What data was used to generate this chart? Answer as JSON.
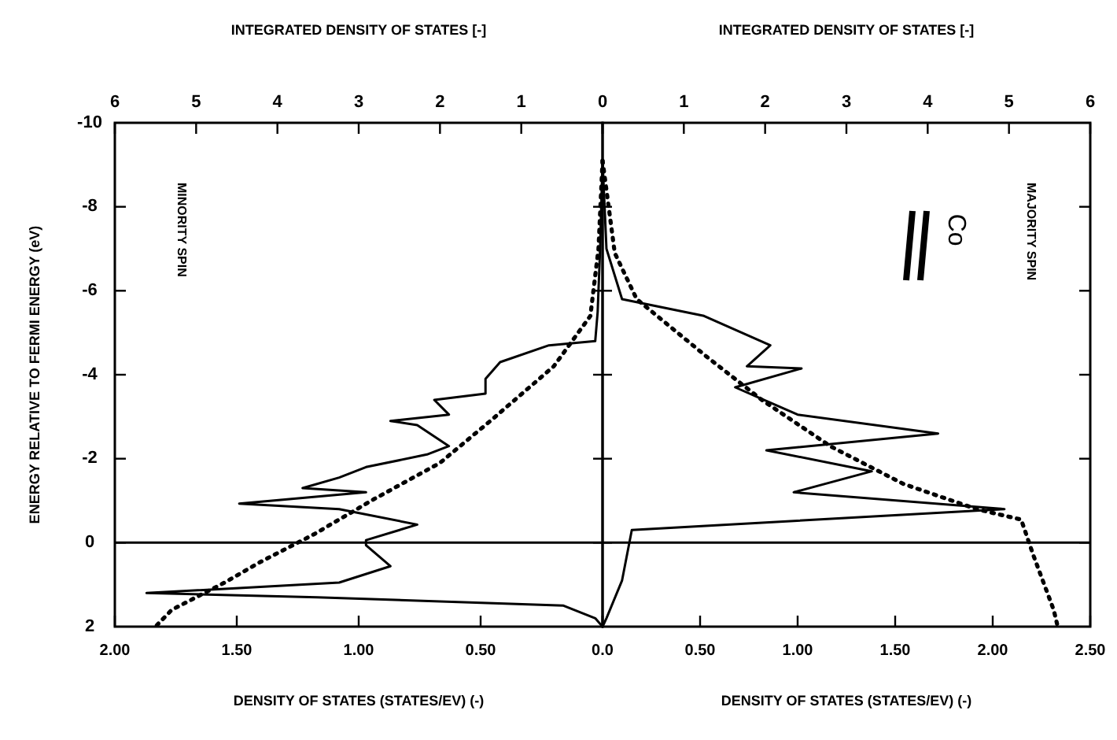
{
  "chart_data": [
    {
      "type": "line",
      "ylabel": "ENERGY RELATIVE TO FERMI ENERGY (eV)",
      "xlabel": "DENSITY OF STATES (STATES/EV) (-)",
      "x2label": "INTEGRATED DENSITY OF STATES [-]",
      "ylim": [
        2,
        -10
      ],
      "yticks": [
        -10,
        -8,
        -6,
        -4,
        -2,
        0,
        2
      ],
      "xlim": [
        2,
        0
      ],
      "xticks": [
        {
          "value": 2,
          "label": "2.00"
        },
        {
          "value": 1.5,
          "label": "1.50"
        },
        {
          "value": 1,
          "label": "1.00"
        },
        {
          "value": 0.5,
          "label": "0.50"
        },
        {
          "value": 0,
          "label": "0.0"
        }
      ],
      "x2lim": [
        6,
        0
      ],
      "x2ticks": [
        6,
        5,
        4,
        3,
        2,
        1,
        0
      ],
      "grid": false,
      "series": [
        {
          "color": "#000000",
          "line_style": "solid",
          "values": [
            -9.1,
            -7,
            -5.5,
            -4.8,
            -4.7,
            -4.3,
            -3.9,
            -3.55,
            -3.4,
            -3.05,
            -2.9,
            -2.8,
            -2.3,
            -2.1,
            -1.8,
            -1.55,
            -1.3,
            -1.2,
            -0.93,
            -0.8,
            -0.43,
            -0.06,
            0.06,
            0.56,
            0.95,
            1.2,
            1.3,
            1.5,
            1.8,
            2
          ],
          "x": [
            0,
            0.01,
            0.02,
            0.03,
            0.22,
            0.42,
            0.48,
            0.48,
            0.69,
            0.63,
            0.87,
            0.76,
            0.63,
            0.72,
            0.97,
            1.08,
            1.23,
            0.97,
            1.49,
            1.08,
            0.76,
            0.97,
            0.97,
            0.87,
            1.08,
            1.87,
            1.17,
            0.16,
            0.03,
            0
          ]
        },
        {
          "color": "#000000",
          "line_style": "dotted",
          "axis": "x2",
          "values": [
            -9.1,
            -7,
            -5.4,
            -4.2,
            -2.9,
            -1.9,
            -1.05,
            -0.2,
            0.45,
            0.95,
            1.6,
            2
          ],
          "x": [
            0,
            0.05,
            0.15,
            0.6,
            1.38,
            2.0,
            2.8,
            3.55,
            4.2,
            4.65,
            5.3,
            5.5
          ]
        }
      ],
      "ref_lines": [
        {
          "axis": "y",
          "value": 0,
          "color": "#000000"
        }
      ],
      "annotations": [
        "MINORITY SPIN"
      ]
    },
    {
      "type": "line",
      "xlabel": "DENSITY OF STATES (STATES/EV) (-)",
      "x2label": "INTEGRATED DENSITY OF STATES [-]",
      "ylim": [
        2,
        -10
      ],
      "yticks": [
        -10,
        -8,
        -6,
        -4,
        -2,
        0,
        2
      ],
      "tick_labels": "x",
      "xlim": [
        0,
        2.5
      ],
      "xticks": [
        {
          "value": 0,
          "label": null
        },
        {
          "value": 0.5,
          "label": "0.50"
        },
        {
          "value": 1,
          "label": "1.00"
        },
        {
          "value": 1.5,
          "label": "1.50"
        },
        {
          "value": 2,
          "label": "2.00"
        },
        {
          "value": 2.5,
          "label": "2.50"
        }
      ],
      "x2lim": [
        0,
        6
      ],
      "x2ticks": [
        {
          "value": 0,
          "label": null
        },
        1,
        2,
        3,
        4,
        5,
        6
      ],
      "grid": false,
      "series": [
        {
          "color": "#000000",
          "line_style": "solid",
          "values": [
            -9.1,
            -7,
            -5.8,
            -5.4,
            -4.7,
            -4.2,
            -4.15,
            -3.7,
            -3.05,
            -2.6,
            -2.2,
            -1.7,
            -1.2,
            -0.8,
            -0.3,
            0.9,
            1.8,
            2
          ],
          "x": [
            0,
            0.02,
            0.1,
            0.52,
            0.86,
            0.74,
            1.02,
            0.68,
            1.0,
            1.72,
            0.84,
            1.38,
            0.98,
            2.06,
            0.15,
            0.1,
            0.02,
            0
          ]
        },
        {
          "color": "#000000",
          "line_style": "dotted",
          "axis": "x2",
          "values": [
            -9.1,
            -6.9,
            -5.8,
            -4.4,
            -3.4,
            -2.3,
            -1.4,
            -0.8,
            -0.55,
            0.3,
            1.6,
            2
          ],
          "x": [
            0,
            0.15,
            0.42,
            1.3,
            1.96,
            2.8,
            3.7,
            4.6,
            5.15,
            5.3,
            5.55,
            5.6
          ]
        }
      ],
      "ref_lines": [
        {
          "axis": "y",
          "value": 0,
          "color": "#000000"
        }
      ],
      "annotations": [
        "MAJORITY SPIN",
        "Co"
      ]
    }
  ]
}
